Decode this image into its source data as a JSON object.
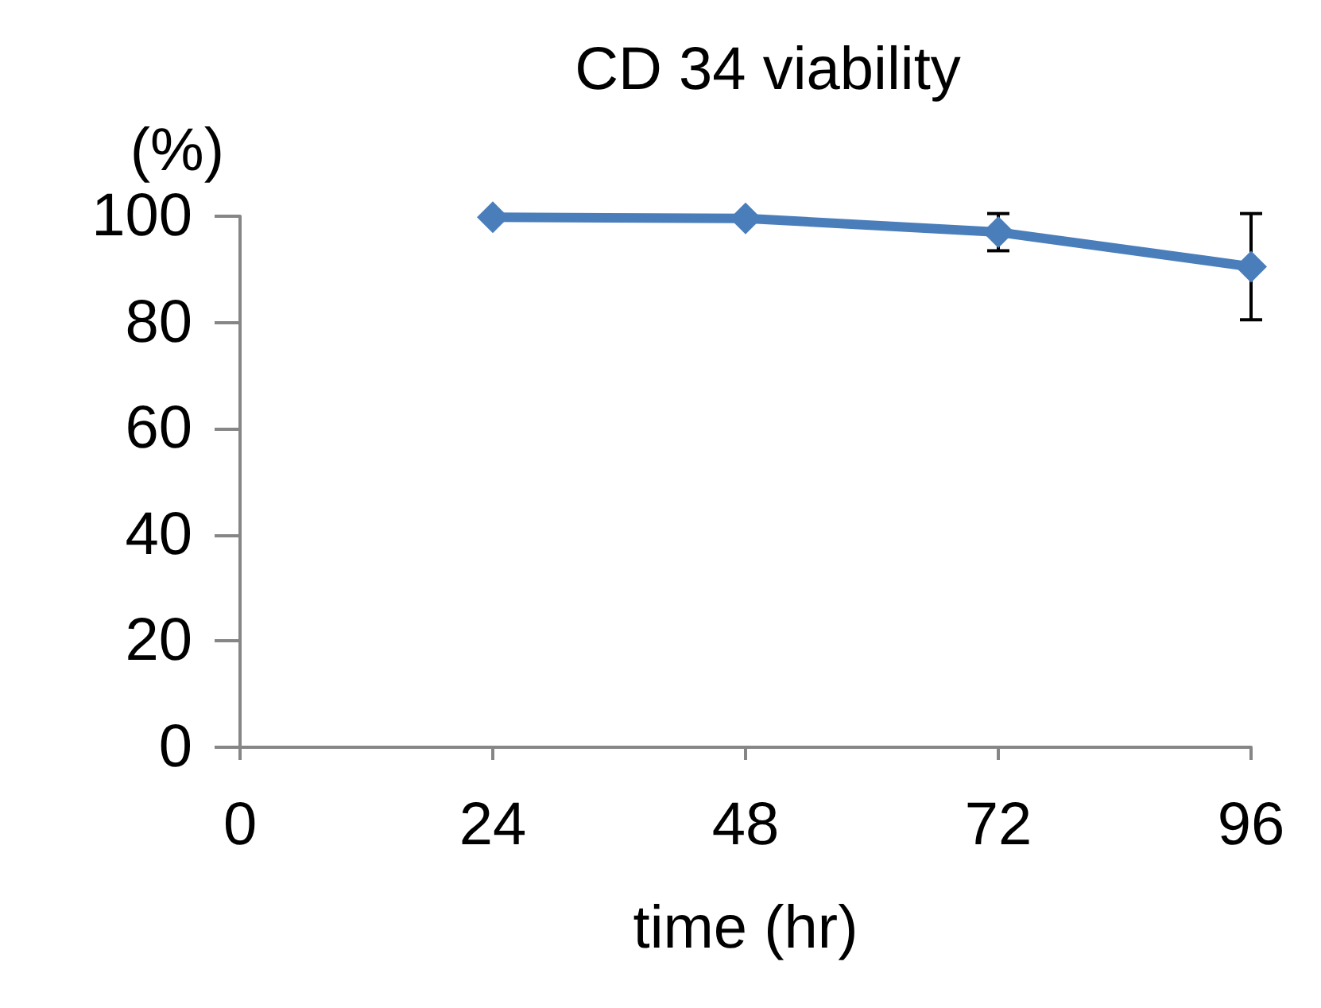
{
  "chart_data": {
    "type": "line",
    "title": "CD 34 viability",
    "xlabel": "time (hr)",
    "ylabel": "(%)",
    "x": [
      24,
      48,
      72,
      96
    ],
    "series": [
      {
        "color": "#4a7ebb",
        "values": [
          99.8,
          99.6,
          97,
          90.5
        ],
        "errors": [
          null,
          null,
          3.5,
          10
        ]
      }
    ],
    "xlim": [
      0,
      96
    ],
    "xticks": [
      0,
      24,
      48,
      72,
      96
    ],
    "ylim": [
      0,
      100
    ],
    "yticks": [
      0,
      20,
      40,
      60,
      80,
      100
    ],
    "grid": false,
    "marker": "diamond",
    "line_style": "solid"
  }
}
